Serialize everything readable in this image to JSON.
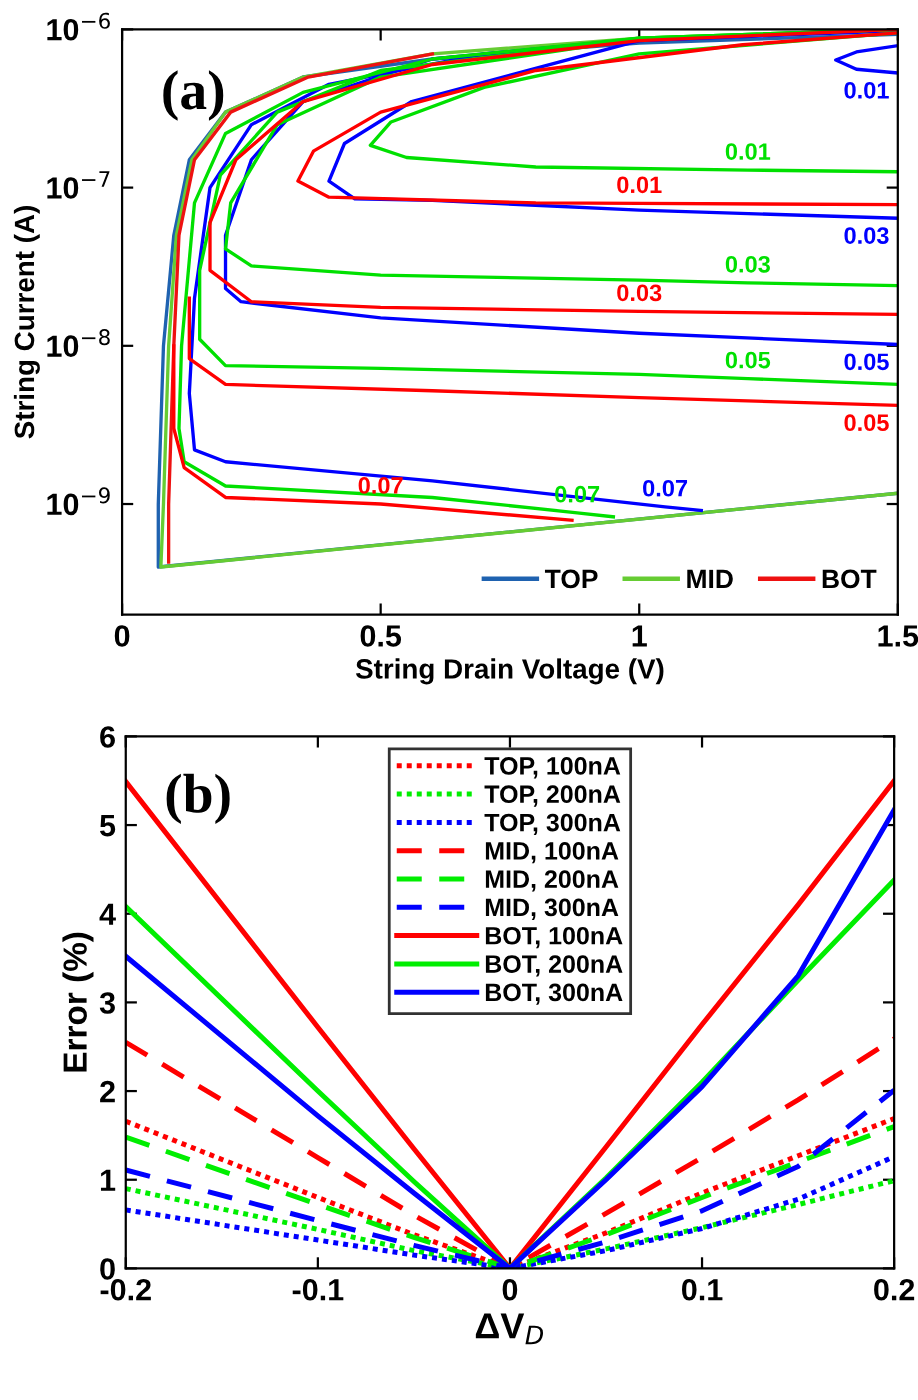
{
  "chart_data": [
    {
      "type": "line",
      "xlabel": "String Drain Voltage (V)",
      "ylabel": "String Current (A)",
      "log": "y",
      "xlim": [
        0,
        1.5
      ],
      "ylim": [
        2e-10,
        1e-06
      ],
      "xticks": [
        0,
        0.5,
        1,
        1.5
      ],
      "yticks": [
        {
          "value": 1e-09,
          "label": "10$^{−9}$"
        },
        {
          "value": 1e-08,
          "label": "10$^{−8}$"
        },
        {
          "value": 1e-07,
          "label": "10$^{−7}$"
        },
        {
          "value": 1e-06,
          "label": "10$^{−6}$"
        }
      ],
      "legend": "bottom right",
      "grid": false,
      "annotations": [
        "(a)",
        {
          "text": "0.01",
          "x": 1.5,
          "y": 5.3e-07
        },
        {
          "text": "0.01",
          "x": 1.21,
          "y": 1.29e-07
        },
        {
          "text": "0.01",
          "x": 1.0,
          "y": 7.95e-08
        },
        {
          "text": "0.03",
          "x": 1.5,
          "y": 6.4e-08
        },
        {
          "text": "0.03",
          "x": 1.21,
          "y": 2.5e-08
        },
        {
          "text": "0.03",
          "x": 1.0,
          "y": 1.65e-08
        },
        {
          "text": "0.05",
          "x": 1.5,
          "y": 1.02e-08
        },
        {
          "text": "0.05",
          "x": 1.21,
          "y": 6.2e-09
        },
        {
          "text": "0.05",
          "x": 1.5,
          "y": 4.2e-09
        },
        {
          "text": "0.07",
          "x": 0.88,
          "y": 8.8e-10
        },
        {
          "text": "0.07",
          "x": 1.05,
          "y": 9.6e-10
        },
        {
          "text": "0.07",
          "x": 0.5,
          "y": 1e-09
        }
      ],
      "series": [
        {
          "name": "TOP",
          "color": "#1f62b0",
          "x": [
            1.5,
            0.07,
            0.07,
            0.08,
            0.1,
            0.13,
            0.2,
            0.35,
            0.6,
            1.0,
            1.5
          ],
          "values": [
            1.17e-09,
            4e-10,
            1e-09,
            1e-08,
            5e-08,
            1.5e-07,
            3e-07,
            5e-07,
            6.5e-07,
            8.2e-07,
            9.3e-07
          ]
        },
        {
          "name": "MID",
          "color": "#66cc33",
          "x": [
            1.5,
            0.075,
            0.08,
            0.09,
            0.105,
            0.135,
            0.2,
            0.35,
            0.6,
            1.0,
            1.5
          ],
          "values": [
            1.17e-09,
            4e-10,
            1e-09,
            1e-08,
            5e-08,
            1.5e-07,
            3e-07,
            5e-07,
            7e-07,
            8.8e-07,
            1e-06
          ]
        },
        {
          "name": "BOT",
          "color": "#ee1111",
          "x": [
            0.09,
            0.09,
            0.1,
            0.11,
            0.14,
            0.21,
            0.36,
            0.6
          ],
          "values": [
            4.3e-10,
            1e-09,
            1e-08,
            5e-08,
            1.5e-07,
            3e-07,
            5e-07,
            7e-07
          ]
        },
        {
          "color": "#0000ff",
          "x": [
            1.5,
            1.42,
            1.38,
            1.42,
            1.5
          ],
          "values": [
            7.9e-07,
            7.2e-07,
            6.4e-07,
            5.6e-07,
            5.3e-07
          ]
        },
        {
          "color": "#0000ff",
          "x": [
            1.5,
            1.0,
            0.56,
            0.43,
            0.4,
            0.45,
            0.6,
            1.0,
            1.5
          ],
          "values": [
            9.8e-07,
            8.5e-07,
            3.5e-07,
            1.9e-07,
            1.1e-07,
            8.5e-08,
            8.3e-08,
            7.2e-08,
            6.4e-08
          ]
        },
        {
          "color": "#0000ff",
          "x": [
            1.5,
            1.0,
            0.6,
            0.35,
            0.25,
            0.2,
            0.2,
            0.23,
            0.5,
            1.0,
            1.5
          ],
          "values": [
            1e-06,
            8.7e-07,
            6.5e-07,
            3.5e-07,
            1.5e-07,
            5e-08,
            2.3e-08,
            1.9e-08,
            1.5e-08,
            1.2e-08,
            1.02e-08
          ]
        },
        {
          "color": "#0000ff",
          "x": [
            1.5,
            1.0,
            0.7,
            0.4,
            0.25,
            0.17,
            0.14,
            0.13,
            0.14,
            0.2,
            0.6,
            1.05,
            1.12
          ],
          "values": [
            1e-06,
            8.5e-07,
            7e-07,
            4.5e-07,
            2.5e-07,
            1e-07,
            2e-08,
            5e-09,
            2.2e-09,
            1.85e-09,
            1.4e-09,
            9.6e-10,
            9.1e-10
          ]
        },
        {
          "color": "#00e000",
          "x": [
            1.5,
            1.0,
            0.7,
            0.52,
            0.48,
            0.55,
            0.8,
            1.21,
            1.5
          ],
          "values": [
            9.5e-07,
            7e-07,
            4.3e-07,
            2.6e-07,
            1.85e-07,
            1.55e-07,
            1.35e-07,
            1.29e-07,
            1.26e-07
          ]
        },
        {
          "color": "#00e000",
          "x": [
            1.5,
            1.0,
            0.5,
            0.3,
            0.21,
            0.2,
            0.25,
            0.5,
            1.0,
            1.21,
            1.5
          ],
          "values": [
            1e-06,
            8.7e-07,
            5e-07,
            2.5e-07,
            8e-08,
            4.1e-08,
            3.2e-08,
            2.8e-08,
            2.6e-08,
            2.5e-08,
            2.4e-08
          ]
        },
        {
          "color": "#00e000",
          "x": [
            1.5,
            1.0,
            0.5,
            0.3,
            0.19,
            0.15,
            0.15,
            0.2,
            0.5,
            1.0,
            1.21,
            1.5
          ],
          "values": [
            1e-06,
            8.8e-07,
            5.5e-07,
            3e-07,
            1.2e-07,
            3e-08,
            1.1e-08,
            7.5e-09,
            7.2e-09,
            6.6e-09,
            6.2e-09,
            5.7e-09
          ]
        },
        {
          "color": "#00e000",
          "x": [
            1.5,
            1.0,
            0.6,
            0.35,
            0.2,
            0.14,
            0.115,
            0.11,
            0.12,
            0.2,
            0.6,
            0.88,
            0.95
          ],
          "values": [
            1e-06,
            8.8e-07,
            6.5e-07,
            4e-07,
            2.2e-07,
            8e-08,
            1e-08,
            3e-09,
            1.85e-09,
            1.3e-09,
            1.1e-09,
            8.8e-10,
            8.3e-10
          ]
        },
        {
          "color": "#ff0000",
          "x": [
            1.5,
            1.2,
            0.8,
            0.5,
            0.37,
            0.34,
            0.4,
            0.8,
            1.0,
            1.5
          ],
          "values": [
            9.5e-07,
            8e-07,
            5.5e-07,
            3e-07,
            1.7e-07,
            1.1e-07,
            8.7e-08,
            8e-08,
            7.95e-08,
            7.8e-08
          ]
        },
        {
          "color": "#ff0000",
          "x": [
            1.5,
            1.0,
            0.6,
            0.35,
            0.22,
            0.17,
            0.17,
            0.25,
            0.5,
            1.0,
            1.5
          ],
          "values": [
            1e-06,
            8.5e-07,
            6e-07,
            3.5e-07,
            1.5e-07,
            6e-08,
            3e-08,
            1.9e-08,
            1.75e-08,
            1.65e-08,
            1.58e-08
          ]
        },
        {
          "color": "#ff0000",
          "x": [
            0.13,
            0.13,
            0.2,
            0.6,
            1.0,
            1.5
          ],
          "values": [
            2e-08,
            8.3e-09,
            5.7e-09,
            5.2e-09,
            4.7e-09,
            4.2e-09
          ]
        },
        {
          "color": "#ff0000",
          "x": [
            0.1,
            0.1,
            0.12,
            0.2,
            0.5,
            0.87
          ],
          "values": [
            1e-08,
            3e-09,
            1.7e-09,
            1.1e-09,
            1e-09,
            7.9e-10
          ]
        }
      ]
    },
    {
      "type": "line",
      "xlabel": "ΔV$_{D}$",
      "ylabel": "Error (%)",
      "xlim": [
        -0.2,
        0.2
      ],
      "ylim": [
        0,
        6
      ],
      "xticks": [
        -0.2,
        -0.1,
        0,
        0.1,
        0.2
      ],
      "yticks": [
        0,
        1,
        2,
        3,
        4,
        5,
        6
      ],
      "legend": "top",
      "grid": false,
      "annotations": [
        "(b)"
      ],
      "x": [
        -0.2,
        -0.1,
        -0.05,
        0,
        0.05,
        0.1,
        0.15,
        0.2
      ],
      "series": [
        {
          "name": "TOP, 100nA",
          "color": "#ff0000",
          "line_style": "dotted",
          "values": [
            1.66,
            0.8,
            0.38,
            0,
            0.4,
            0.85,
            1.27,
            1.69
          ]
        },
        {
          "name": "TOP, 200nA",
          "color": "#00ee00",
          "line_style": "dotted",
          "values": [
            0.9,
            0.44,
            0.2,
            0,
            0.22,
            0.46,
            0.72,
            0.99
          ]
        },
        {
          "name": "TOP, 300nA",
          "color": "#0000ff",
          "line_style": "dotted",
          "values": [
            0.66,
            0.32,
            0.15,
            0,
            0.2,
            0.45,
            0.78,
            1.26
          ]
        },
        {
          "name": "MID, 100nA",
          "color": "#ff0000",
          "line_style": "dashed",
          "values": [
            2.55,
            1.25,
            0.6,
            0,
            0.62,
            1.25,
            1.9,
            2.59
          ]
        },
        {
          "name": "MID, 200nA",
          "color": "#00ee00",
          "line_style": "dashed",
          "values": [
            1.48,
            0.72,
            0.35,
            0,
            0.38,
            0.8,
            1.2,
            1.6
          ]
        },
        {
          "name": "MID, 300nA",
          "color": "#0000ff",
          "line_style": "dashed",
          "values": [
            1.11,
            0.54,
            0.26,
            0,
            0.3,
            0.65,
            1.15,
            2.01
          ]
        },
        {
          "name": "BOT, 100nA",
          "color": "#ff0000",
          "line_style": "solid",
          "values": [
            5.49,
            2.72,
            1.35,
            0,
            1.37,
            2.75,
            4.1,
            5.5
          ]
        },
        {
          "name": "BOT, 200nA",
          "color": "#00ee00",
          "line_style": "solid",
          "values": [
            4.08,
            2.0,
            0.98,
            0,
            1.02,
            2.1,
            3.25,
            4.38
          ]
        },
        {
          "name": "BOT, 300nA",
          "color": "#0000ff",
          "line_style": "solid",
          "values": [
            3.52,
            1.72,
            0.85,
            0,
            1.0,
            2.05,
            3.3,
            5.17
          ]
        }
      ]
    }
  ]
}
